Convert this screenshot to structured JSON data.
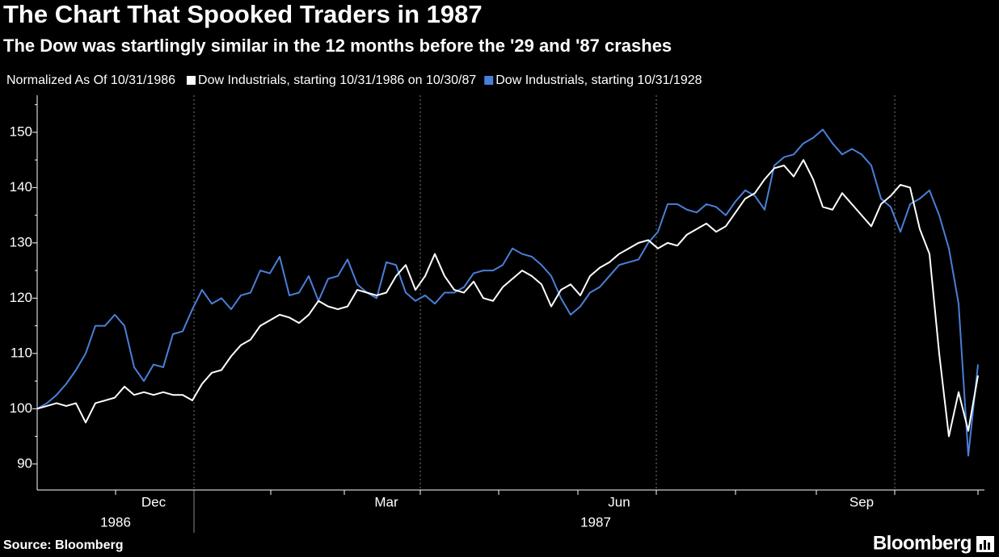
{
  "chart_data": {
    "type": "line",
    "title": "The Chart That Spooked Traders in 1987",
    "subtitle": "The Dow was startlingly similar in the 12 months before the '29 and '87 crashes",
    "legend_title": "Normalized As Of 10/31/1986",
    "source": "Source: Bloomberg",
    "brand": "Bloomberg",
    "years": [
      "1986",
      "1987"
    ],
    "categories": [
      null,
      null,
      null,
      null,
      null,
      null,
      null,
      null,
      null,
      null,
      null,
      null,
      "Dec",
      null,
      null,
      null,
      null,
      null,
      null,
      null,
      null,
      null,
      null,
      null,
      null,
      null,
      null,
      null,
      null,
      null,
      null,
      null,
      null,
      null,
      null,
      null,
      "Mar",
      null,
      null,
      null,
      null,
      null,
      null,
      null,
      null,
      null,
      null,
      null,
      null,
      null,
      null,
      null,
      null,
      null,
      null,
      null,
      null,
      null,
      null,
      null,
      "Jun",
      null,
      null,
      null,
      null,
      null,
      null,
      null,
      null,
      null,
      null,
      null,
      null,
      null,
      null,
      null,
      null,
      null,
      null,
      null,
      null,
      null,
      null,
      null,
      null,
      "Sep",
      null,
      null,
      null,
      null,
      null,
      null,
      null,
      null,
      null,
      null,
      null,
      null
    ],
    "series": [
      {
        "name": "Dow Industrials, starting 10/31/1928",
        "color": "#4a7fd8",
        "values": [
          100,
          101,
          102.5,
          104.5,
          107,
          110,
          115,
          115,
          117,
          115,
          107.5,
          105,
          108,
          107.5,
          113.5,
          114,
          118,
          121.5,
          119,
          120,
          118,
          120.5,
          121,
          125,
          124.5,
          127.5,
          120.5,
          121,
          124,
          119.5,
          123.5,
          124,
          127,
          122.5,
          121,
          120,
          126.5,
          126,
          121,
          119.5,
          120.5,
          119,
          121,
          121,
          122,
          124.5,
          125,
          125,
          126,
          129,
          128,
          127.5,
          126,
          124,
          120,
          117,
          118.5,
          121,
          122,
          124,
          126,
          126.5,
          127,
          130,
          132,
          137,
          137,
          136,
          135.5,
          137,
          136.5,
          135,
          137.5,
          139.5,
          138.5,
          136,
          144,
          145.5,
          146,
          148,
          149,
          150.5,
          148,
          146,
          147,
          146,
          144,
          138,
          136.5,
          132,
          137,
          138,
          139.5,
          135,
          129,
          119,
          91.5,
          108
        ]
      },
      {
        "name": "Dow Industrials, starting 10/31/1986 on 10/30/87",
        "color": "#ffffff",
        "values": [
          100,
          100.5,
          101,
          100.5,
          101,
          97.5,
          101,
          101.5,
          102,
          104,
          102.5,
          103,
          102.5,
          103,
          102.5,
          102.5,
          101.5,
          104.5,
          106.5,
          107,
          109.5,
          111.5,
          112.5,
          115,
          116,
          117,
          116.5,
          115.5,
          117,
          119.5,
          118.5,
          118,
          118.5,
          121.5,
          121,
          120.5,
          121,
          124,
          126,
          121.5,
          124,
          128,
          124,
          121.5,
          121,
          123,
          120,
          119.5,
          122,
          123.5,
          125,
          124,
          122.5,
          118.5,
          121.5,
          122.5,
          120.5,
          124,
          125.5,
          126.5,
          128,
          129,
          130,
          130.5,
          129,
          130,
          129.5,
          131.5,
          132.5,
          133.5,
          132,
          133,
          135.5,
          138,
          139,
          141.5,
          143.5,
          144,
          142,
          145,
          141.5,
          136.5,
          136,
          139,
          137,
          135,
          133,
          137,
          138.5,
          140.5,
          140,
          132.5,
          128,
          110,
          95,
          103,
          96,
          106
        ]
      }
    ],
    "ylim": [
      85.3,
      156.7
    ],
    "yticks": [
      90,
      100,
      110,
      120,
      130,
      140,
      150
    ]
  }
}
